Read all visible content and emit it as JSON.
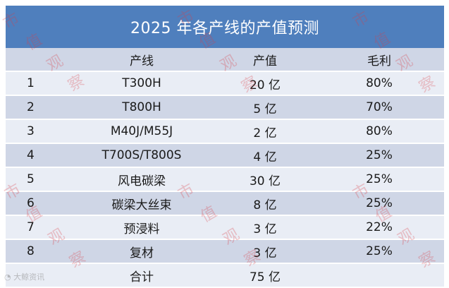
{
  "title": "2025 年各产线的产值预测",
  "headers": {
    "index": "",
    "line": "产线",
    "value": "产值",
    "margin": "毛利"
  },
  "rows": [
    {
      "index": "1",
      "line": "T300H",
      "value": "20 亿",
      "margin": "80%"
    },
    {
      "index": "2",
      "line": "T800H",
      "value": "5 亿",
      "margin": "70%"
    },
    {
      "index": "3",
      "line": "M40J/M55J",
      "value": "2 亿",
      "margin": "80%"
    },
    {
      "index": "4",
      "line": "T700S/T800S",
      "value": "4 亿",
      "margin": "25%"
    },
    {
      "index": "5",
      "line": "风电碳梁",
      "value": "30 亿",
      "margin": "25%"
    },
    {
      "index": "6",
      "line": "碳梁大丝束",
      "value": "8 亿",
      "margin": "25%"
    },
    {
      "index": "7",
      "line": "预浸料",
      "value": "3 亿",
      "margin": "22%"
    },
    {
      "index": "8",
      "line": "复材",
      "value": "3 亿",
      "margin": "25%"
    }
  ],
  "total": {
    "label": "合计",
    "value": "75 亿"
  },
  "watermark": {
    "c1": "市",
    "c2": "值",
    "c3": "观",
    "c4": "察"
  },
  "logo_text": "大鲸资讯",
  "colors": {
    "title_bg": "#4f7fbd",
    "header_bg": "#cfd6e6",
    "row_light": "#e9edf5",
    "row_dark": "#cfd6e6"
  }
}
